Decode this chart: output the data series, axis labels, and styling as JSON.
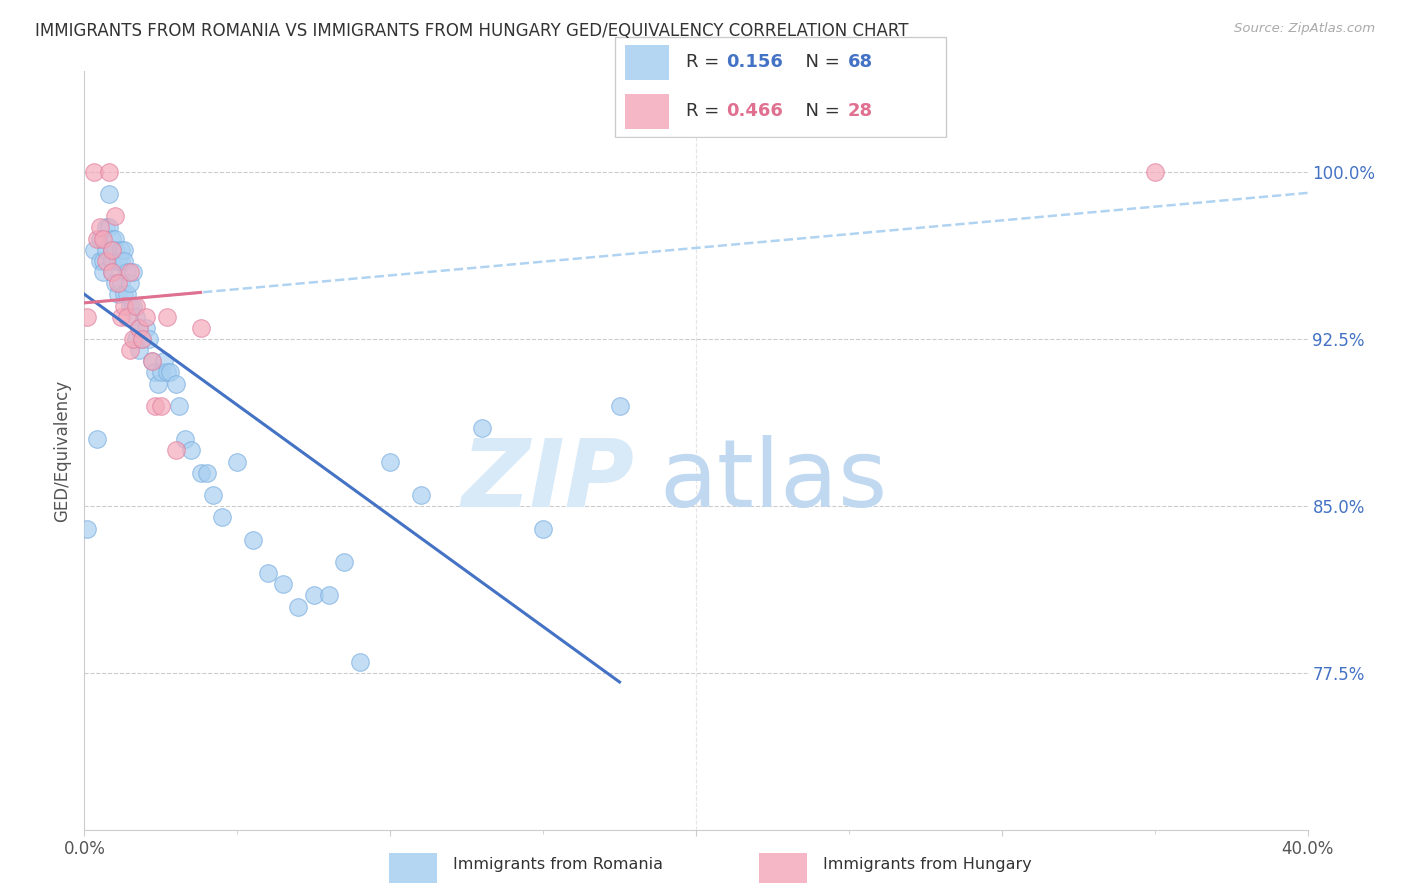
{
  "title": "IMMIGRANTS FROM ROMANIA VS IMMIGRANTS FROM HUNGARY GED/EQUIVALENCY CORRELATION CHART",
  "source": "Source: ZipAtlas.com",
  "ylabel": "GED/Equivalency",
  "ytick_labels": [
    "100.0%",
    "92.5%",
    "85.0%",
    "77.5%"
  ],
  "ytick_values": [
    1.0,
    0.925,
    0.85,
    0.775
  ],
  "xlim": [
    0.0,
    0.4
  ],
  "ylim": [
    0.705,
    1.045
  ],
  "romania_color": "#A8CFF0",
  "hungary_color": "#F4AABB",
  "romania_edge_color": "#7AAEE0",
  "hungary_edge_color": "#E080A0",
  "romania_line_color": "#4472C4",
  "hungary_line_color": "#E07090",
  "dashed_line_color": "#A8CFF0",
  "romania_R": 0.156,
  "romania_N": 68,
  "hungary_R": 0.466,
  "hungary_N": 28,
  "legend_label_romania": "Immigrants from Romania",
  "legend_label_hungary": "Immigrants from Hungary",
  "romania_x": [
    0.001,
    0.003,
    0.004,
    0.005,
    0.005,
    0.006,
    0.006,
    0.007,
    0.007,
    0.008,
    0.008,
    0.009,
    0.009,
    0.009,
    0.009,
    0.01,
    0.01,
    0.01,
    0.011,
    0.011,
    0.012,
    0.012,
    0.012,
    0.013,
    0.013,
    0.013,
    0.014,
    0.014,
    0.015,
    0.015,
    0.016,
    0.016,
    0.017,
    0.017,
    0.018,
    0.018,
    0.019,
    0.02,
    0.021,
    0.022,
    0.023,
    0.024,
    0.025,
    0.026,
    0.027,
    0.028,
    0.03,
    0.031,
    0.033,
    0.035,
    0.038,
    0.04,
    0.042,
    0.045,
    0.05,
    0.055,
    0.06,
    0.065,
    0.07,
    0.075,
    0.08,
    0.085,
    0.09,
    0.1,
    0.11,
    0.13,
    0.15,
    0.175
  ],
  "romania_y": [
    0.84,
    0.965,
    0.88,
    0.97,
    0.96,
    0.96,
    0.955,
    0.975,
    0.965,
    0.975,
    0.99,
    0.97,
    0.965,
    0.96,
    0.955,
    0.97,
    0.965,
    0.95,
    0.96,
    0.945,
    0.965,
    0.96,
    0.95,
    0.965,
    0.96,
    0.945,
    0.955,
    0.945,
    0.95,
    0.94,
    0.955,
    0.94,
    0.935,
    0.925,
    0.93,
    0.92,
    0.925,
    0.93,
    0.925,
    0.915,
    0.91,
    0.905,
    0.91,
    0.915,
    0.91,
    0.91,
    0.905,
    0.895,
    0.88,
    0.875,
    0.865,
    0.865,
    0.855,
    0.845,
    0.87,
    0.835,
    0.82,
    0.815,
    0.805,
    0.81,
    0.81,
    0.825,
    0.78,
    0.87,
    0.855,
    0.885,
    0.84,
    0.895
  ],
  "hungary_x": [
    0.001,
    0.003,
    0.004,
    0.005,
    0.006,
    0.007,
    0.008,
    0.009,
    0.009,
    0.01,
    0.011,
    0.012,
    0.013,
    0.014,
    0.015,
    0.015,
    0.016,
    0.017,
    0.018,
    0.019,
    0.02,
    0.022,
    0.023,
    0.025,
    0.027,
    0.03,
    0.038,
    0.35
  ],
  "hungary_y": [
    0.935,
    1.0,
    0.97,
    0.975,
    0.97,
    0.96,
    1.0,
    0.965,
    0.955,
    0.98,
    0.95,
    0.935,
    0.94,
    0.935,
    0.955,
    0.92,
    0.925,
    0.94,
    0.93,
    0.925,
    0.935,
    0.915,
    0.895,
    0.895,
    0.935,
    0.875,
    0.93,
    1.0
  ],
  "watermark_zip": "ZIP",
  "watermark_atlas": "atlas",
  "background_color": "#FFFFFF",
  "grid_color": "#CCCCCC",
  "title_fontsize": 12,
  "axis_label_fontsize": 12,
  "tick_fontsize": 12,
  "legend_fontsize": 13
}
